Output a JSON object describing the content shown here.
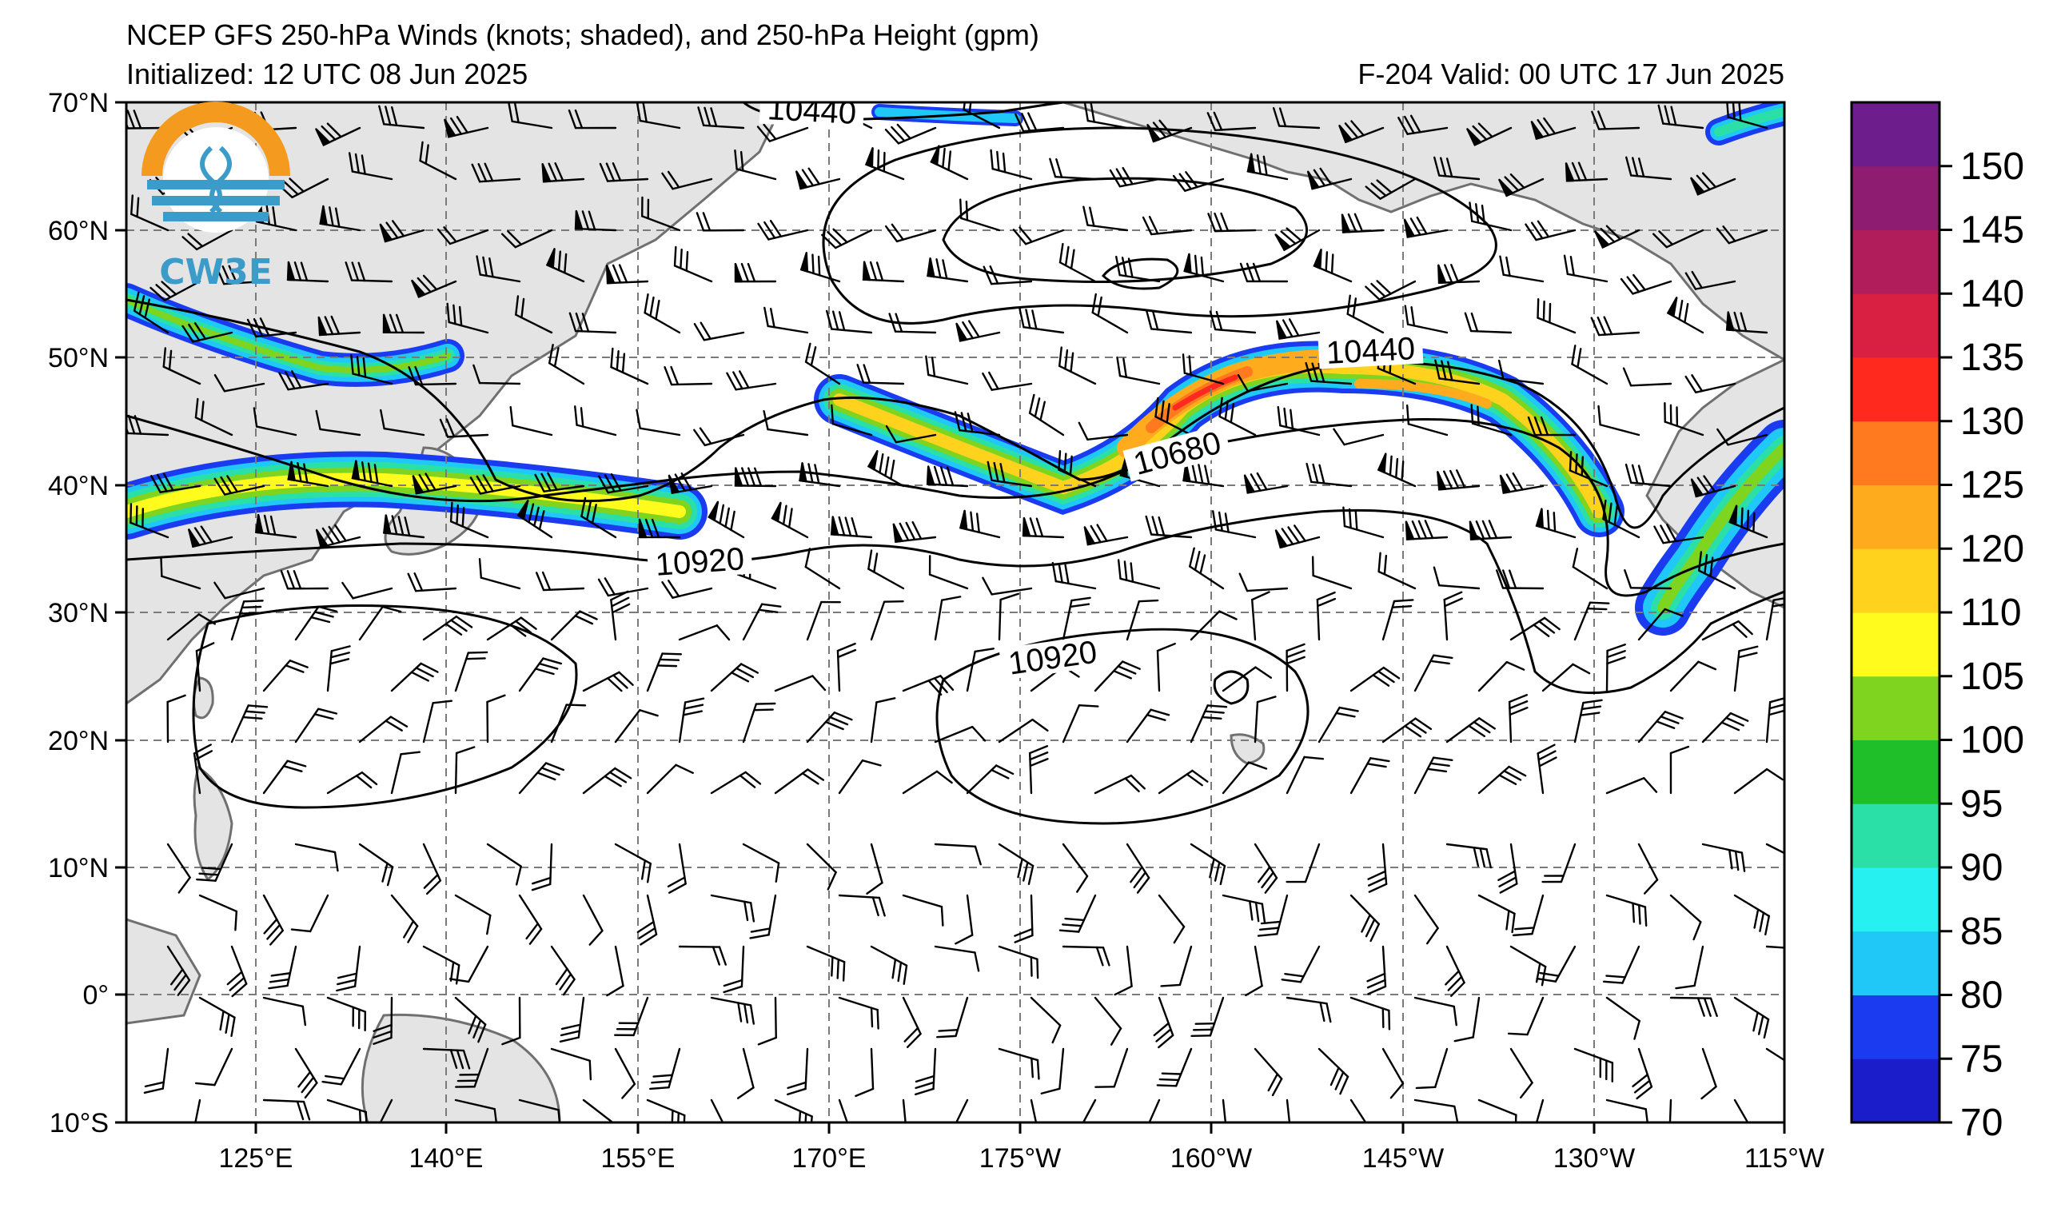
{
  "title": {
    "line1": "NCEP GFS 250-hPa Winds (knots; shaded), and 250-hPa Height (gpm)",
    "initialized": "Initialized: 12 UTC 08 Jun 2025",
    "valid": "F-204  Valid: 00 UTC 17 Jun 2025"
  },
  "logo": {
    "text": "CW3E",
    "icon": "cw3e-logo-icon"
  },
  "axes": {
    "lon_labels": [
      "125°E",
      "140°E",
      "155°E",
      "170°E",
      "175°W",
      "160°W",
      "145°W",
      "130°W",
      "115°W"
    ],
    "lat_labels": [
      "70°N",
      "60°N",
      "50°N",
      "40°N",
      "30°N",
      "20°N",
      "10°N",
      "0°",
      "10°S"
    ]
  },
  "colorbar": {
    "labels": [
      "70",
      "75",
      "80",
      "85",
      "90",
      "95",
      "100",
      "105",
      "110",
      "120",
      "125",
      "130",
      "135",
      "140",
      "145",
      "150"
    ],
    "colors": [
      "#1a1dc9",
      "#1a3bf0",
      "#1fc8f7",
      "#27f0f0",
      "#2be0a6",
      "#1fbf2a",
      "#7ed41f",
      "#fffb1c",
      "#ffd21d",
      "#ffab1e",
      "#ff7a1e",
      "#ff2a1d",
      "#d91f42",
      "#b01d5a",
      "#8e1c70",
      "#6e1e8c"
    ]
  },
  "contour_labels": [
    {
      "text": "10440"
    },
    {
      "text": "10440"
    },
    {
      "text": "10680"
    },
    {
      "text": "10920"
    },
    {
      "text": "10920"
    }
  ],
  "colors": {
    "land": "#e4e4e4",
    "coast": "#707070",
    "grid": "#7a7a7a"
  }
}
